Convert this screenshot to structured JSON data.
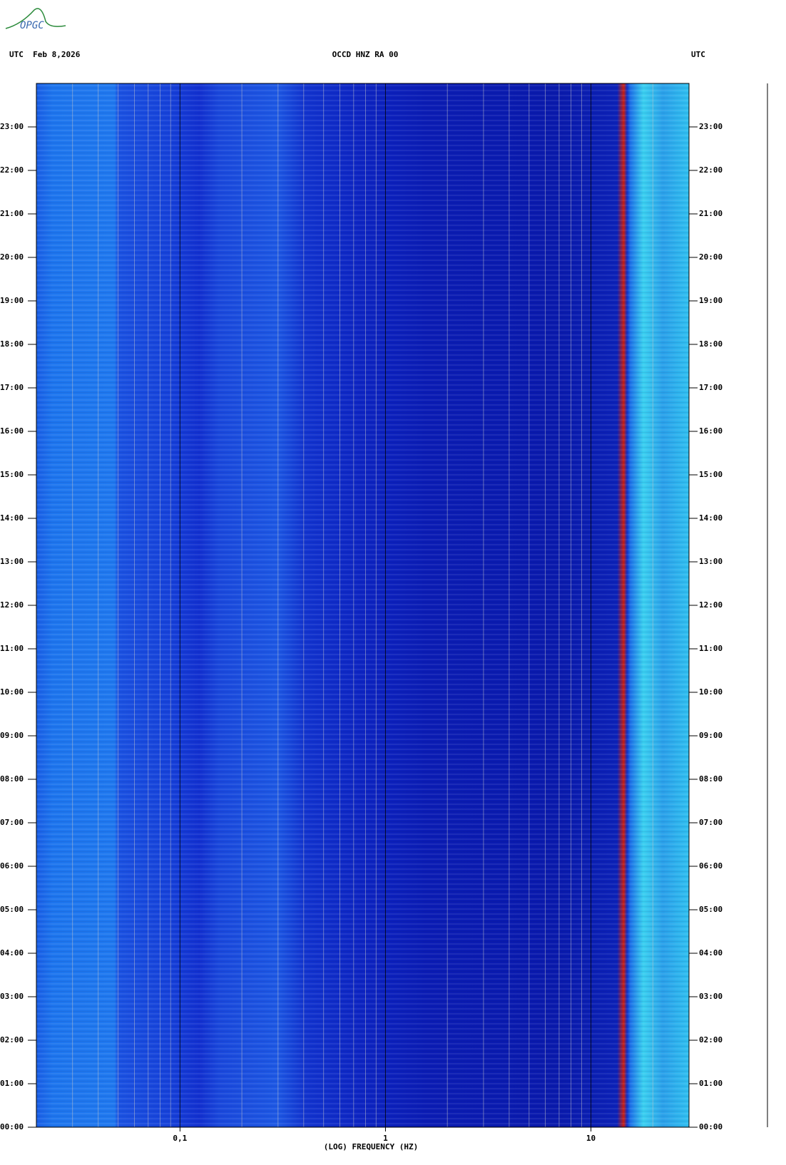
{
  "chart_data": {
    "type": "spectrogram",
    "logo": "OPGC",
    "title": "OCCD HNZ RA 00",
    "left_header": "UTC  Feb 8,2026",
    "right_header": "UTC",
    "xlabel": "(LOG) FREQUENCY (HZ)",
    "xscale": "log",
    "xlim": [
      0.02,
      30
    ],
    "xticks": [
      {
        "value": 0.1,
        "label": "0,1"
      },
      1,
      10
    ],
    "xgrid": [
      0.03,
      0.04,
      0.05,
      0.06,
      0.07,
      0.08,
      0.09,
      0.1,
      0.2,
      0.3,
      0.4,
      0.5,
      0.6,
      0.7,
      0.8,
      0.9,
      1,
      2,
      3,
      4,
      5,
      6,
      7,
      8,
      9,
      10,
      20
    ],
    "ylim": [
      0,
      24
    ],
    "yticks": [
      {
        "value": 0,
        "label": "00:00"
      },
      {
        "value": 1,
        "label": "01:00"
      },
      {
        "value": 2,
        "label": "02:00"
      },
      {
        "value": 3,
        "label": "03:00"
      },
      {
        "value": 4,
        "label": "04:00"
      },
      {
        "value": 5,
        "label": "05:00"
      },
      {
        "value": 6,
        "label": "06:00"
      },
      {
        "value": 7,
        "label": "07:00"
      },
      {
        "value": 8,
        "label": "08:00"
      },
      {
        "value": 9,
        "label": "09:00"
      },
      {
        "value": 10,
        "label": "10:00"
      },
      {
        "value": 11,
        "label": "11:00"
      },
      {
        "value": 12,
        "label": "12:00"
      },
      {
        "value": 13,
        "label": "13:00"
      },
      {
        "value": 14,
        "label": "14:00"
      },
      {
        "value": 15,
        "label": "15:00"
      },
      {
        "value": 16,
        "label": "16:00"
      },
      {
        "value": 17,
        "label": "17:00"
      },
      {
        "value": 18,
        "label": "18:00"
      },
      {
        "value": 19,
        "label": "19:00"
      },
      {
        "value": 20,
        "label": "20:00"
      },
      {
        "value": 21,
        "label": "21:00"
      },
      {
        "value": 22,
        "label": "22:00"
      },
      {
        "value": 23,
        "label": "23:00"
      }
    ]
  }
}
